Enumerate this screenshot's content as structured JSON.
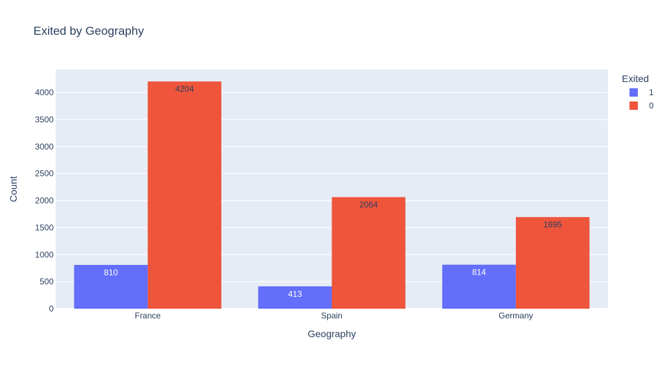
{
  "chart_data": {
    "type": "bar",
    "title": "Exited by Geography",
    "xlabel": "Geography",
    "ylabel": "Count",
    "categories": [
      "France",
      "Spain",
      "Germany"
    ],
    "series": [
      {
        "name": "1",
        "values": [
          810,
          413,
          814
        ],
        "color": "#636efa",
        "label_color": "#ffffff"
      },
      {
        "name": "0",
        "values": [
          4204,
          2064,
          1695
        ],
        "color": "#ef553b",
        "label_color": "#2a3f5f"
      }
    ],
    "ylim": [
      0,
      4425
    ],
    "yticks": [
      0,
      500,
      1000,
      1500,
      2000,
      2500,
      3000,
      3500,
      4000
    ],
    "legend": {
      "title": "Exited",
      "placement": "top-right"
    },
    "grid": true,
    "plot_background": "#e5ecf6",
    "barmode": "group"
  }
}
